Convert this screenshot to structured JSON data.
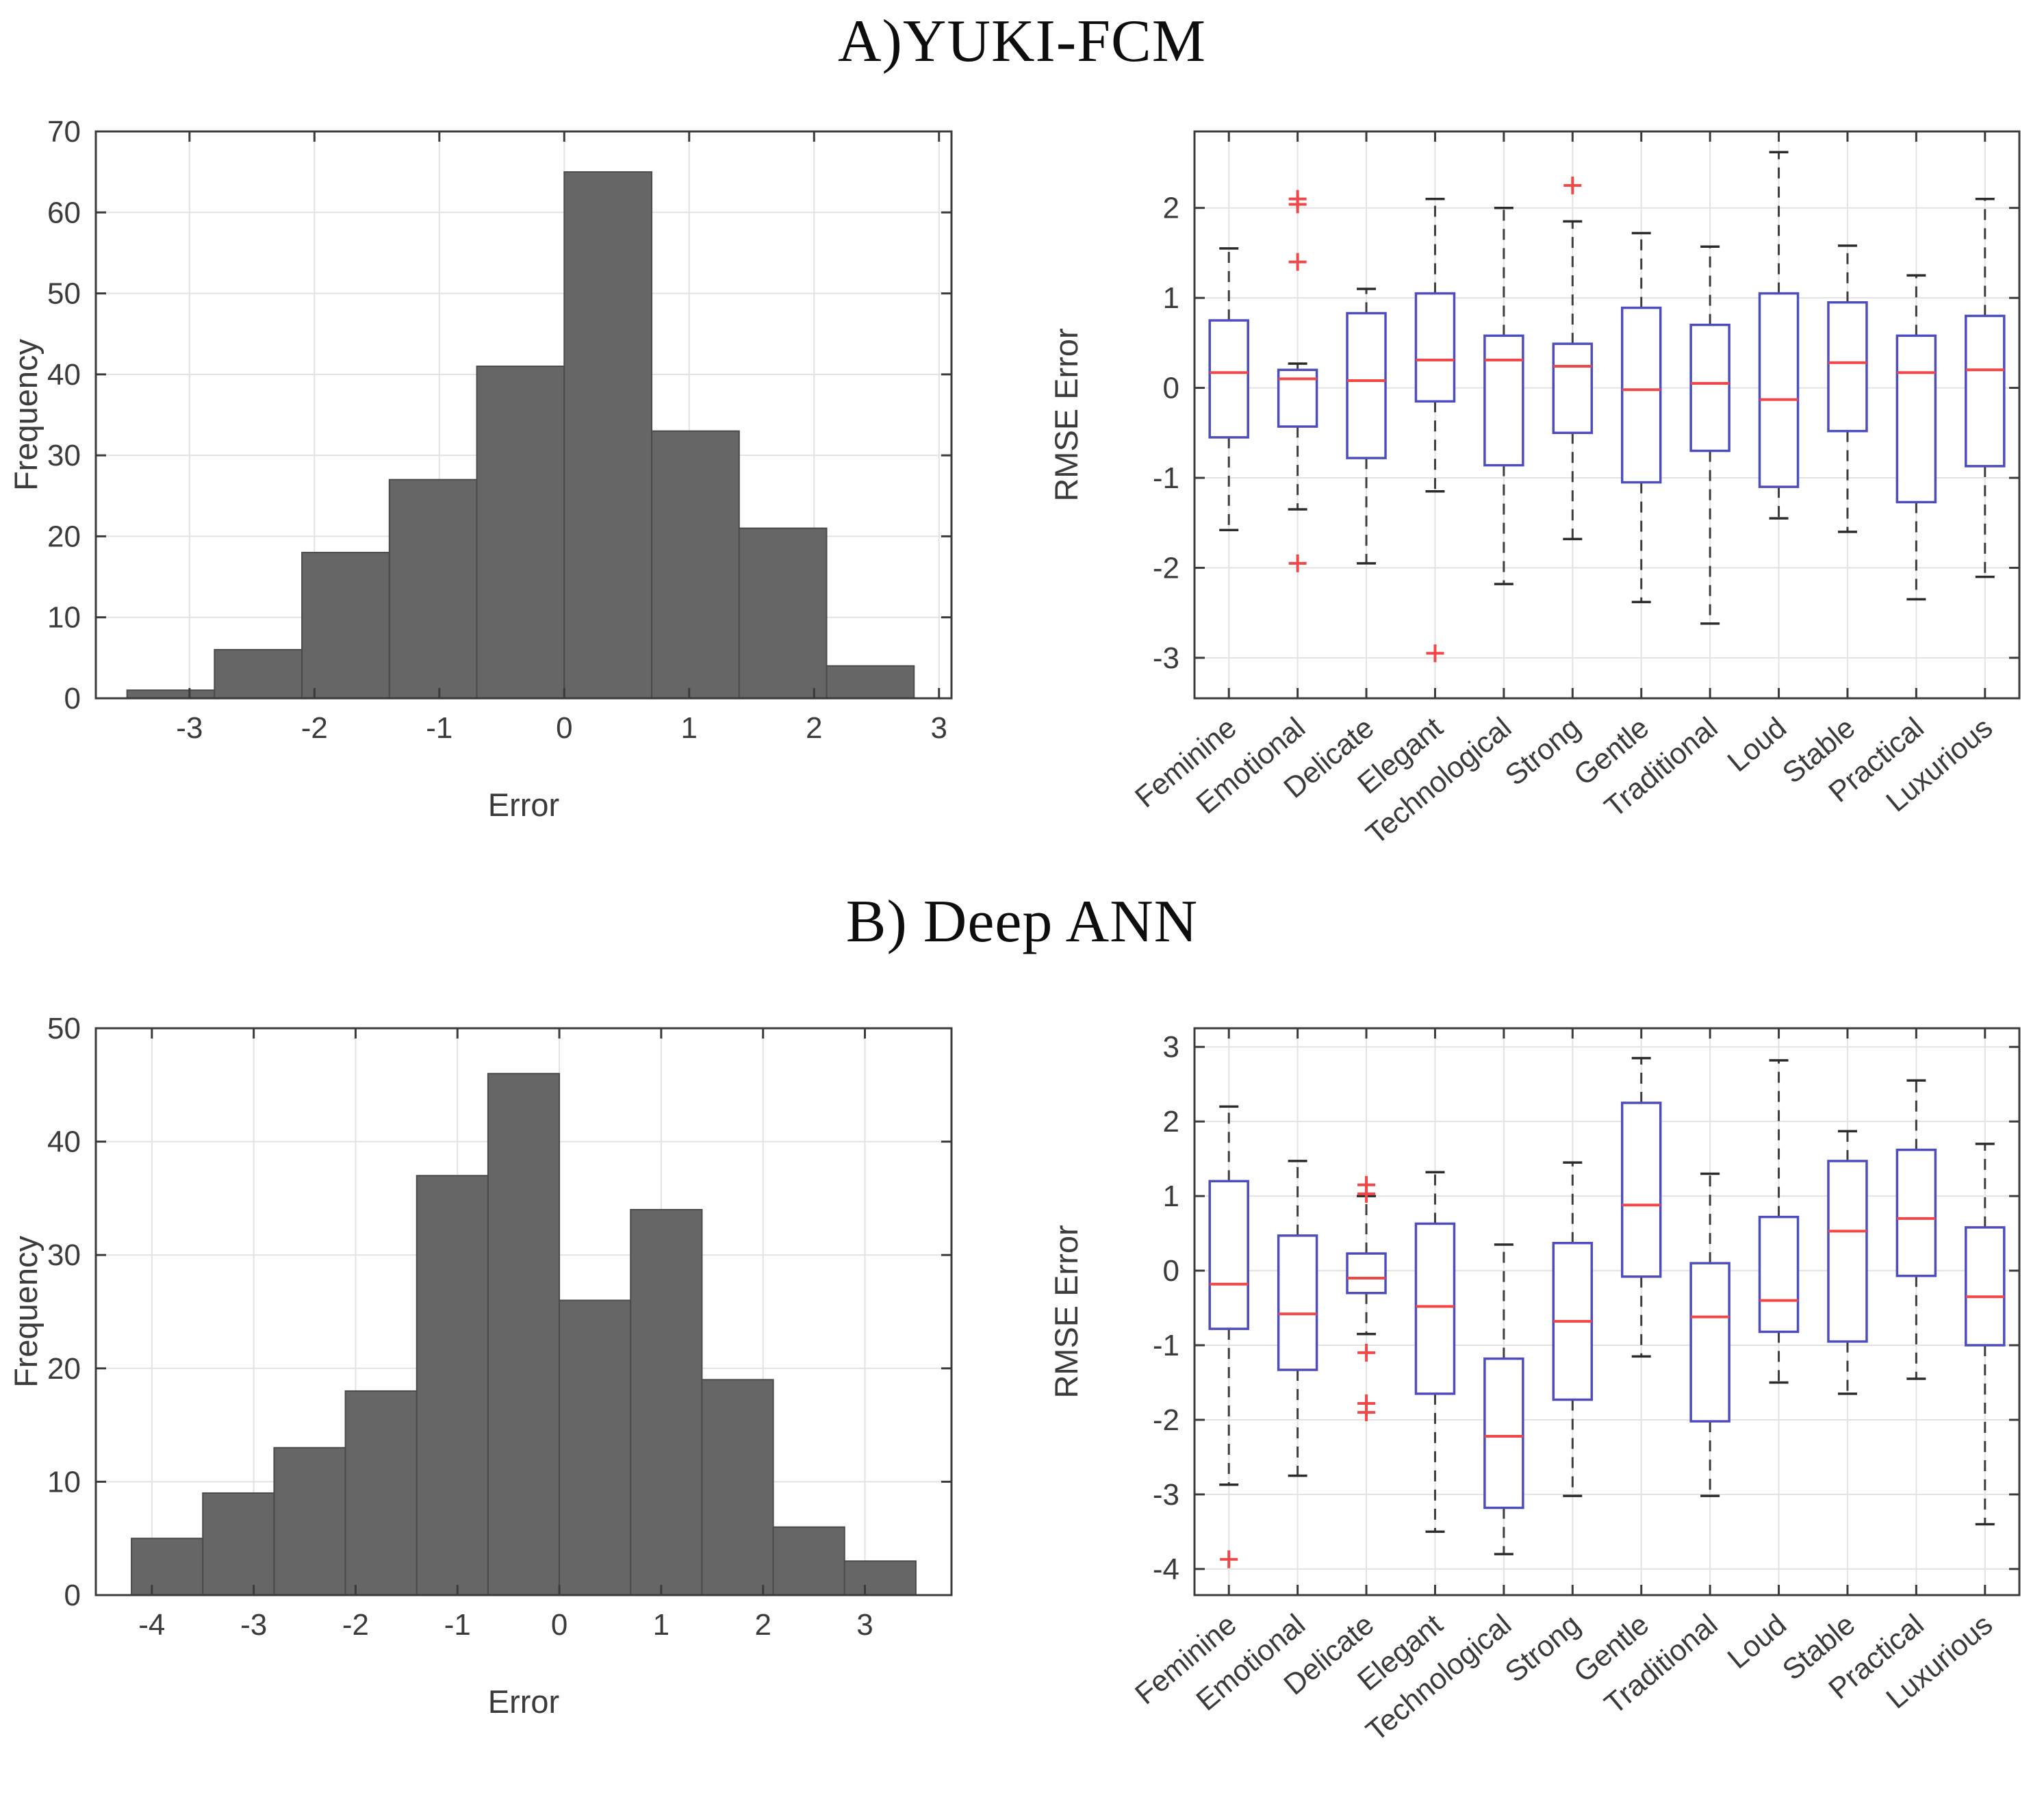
{
  "titles": {
    "a": "A)YUKI-FCM",
    "b": "B) Deep ANN"
  },
  "colors": {
    "bar_fill": "#666666",
    "bar_edge": "#4a4a4a",
    "box_edge": "#4d4dbe",
    "median": "#f04848",
    "whisker": "#3d3d3d",
    "outlier": "#f04848",
    "grid": "#e3e3e3",
    "axis": "#3b3b3b",
    "background": "#ffffff"
  },
  "chart_data": [
    {
      "id": "hist-yuki",
      "type": "bar",
      "variant": "histogram",
      "panel": "A",
      "title": "A)YUKI-FCM",
      "xlabel": "Error",
      "ylabel": "Frequency",
      "xlim": [
        -3.75,
        3.1
      ],
      "ylim": [
        0,
        70
      ],
      "xticks": [
        -3,
        -2,
        -1,
        0,
        1,
        2,
        3
      ],
      "yticks": [
        0,
        10,
        20,
        30,
        40,
        50,
        60,
        70
      ],
      "bin_start": -3.5,
      "bin_width": 0.7,
      "values": [
        1,
        6,
        18,
        27,
        41,
        65,
        33,
        21,
        4
      ],
      "grid": true,
      "legend": "none"
    },
    {
      "id": "box-yuki",
      "type": "boxplot",
      "panel": "A",
      "title": "A)YUKI-FCM",
      "ylabel": "RMSE Error",
      "ylim": [
        -3.45,
        2.85
      ],
      "yticks": [
        -3,
        -2,
        -1,
        0,
        1,
        2
      ],
      "grid": true,
      "boxes": [
        {
          "label": "Feminine",
          "whisker_low": -1.58,
          "q1": -0.55,
          "median": 0.17,
          "q3": 0.75,
          "whisker_high": 1.55,
          "outliers": []
        },
        {
          "label": "Emotional",
          "whisker_low": -1.35,
          "q1": -0.43,
          "median": 0.1,
          "q3": 0.2,
          "whisker_high": 0.27,
          "outliers": [
            2.1,
            2.04,
            1.4,
            -1.95
          ]
        },
        {
          "label": "Delicate",
          "whisker_low": -1.95,
          "q1": -0.78,
          "median": 0.08,
          "q3": 0.83,
          "whisker_high": 1.1,
          "outliers": []
        },
        {
          "label": "Elegant",
          "whisker_low": -1.15,
          "q1": -0.15,
          "median": 0.31,
          "q3": 1.05,
          "whisker_high": 2.1,
          "outliers": [
            -2.95
          ]
        },
        {
          "label": "Technological",
          "whisker_low": -2.18,
          "q1": -0.86,
          "median": 0.31,
          "q3": 0.58,
          "whisker_high": 2.0,
          "outliers": []
        },
        {
          "label": "Strong",
          "whisker_low": -1.68,
          "q1": -0.5,
          "median": 0.24,
          "q3": 0.49,
          "whisker_high": 1.85,
          "outliers": [
            2.25
          ]
        },
        {
          "label": "Gentle",
          "whisker_low": -2.38,
          "q1": -1.05,
          "median": -0.02,
          "q3": 0.89,
          "whisker_high": 1.72,
          "outliers": []
        },
        {
          "label": "Traditional",
          "whisker_low": -2.62,
          "q1": -0.7,
          "median": 0.05,
          "q3": 0.7,
          "whisker_high": 1.57,
          "outliers": []
        },
        {
          "label": "Loud",
          "whisker_low": -1.45,
          "q1": -1.1,
          "median": -0.13,
          "q3": 1.05,
          "whisker_high": 2.62,
          "outliers": []
        },
        {
          "label": "Stable",
          "whisker_low": -1.6,
          "q1": -0.48,
          "median": 0.28,
          "q3": 0.95,
          "whisker_high": 1.58,
          "outliers": []
        },
        {
          "label": "Practical",
          "whisker_low": -2.35,
          "q1": -1.27,
          "median": 0.17,
          "q3": 0.58,
          "whisker_high": 1.25,
          "outliers": []
        },
        {
          "label": "Luxurious",
          "whisker_low": -2.1,
          "q1": -0.87,
          "median": 0.2,
          "q3": 0.8,
          "whisker_high": 2.1,
          "outliers": []
        }
      ]
    },
    {
      "id": "hist-ann",
      "type": "bar",
      "variant": "histogram",
      "panel": "B",
      "title": "B) Deep ANN",
      "xlabel": "Error",
      "ylabel": "Frequency",
      "xlim": [
        -4.55,
        3.85
      ],
      "ylim": [
        0,
        50
      ],
      "xticks": [
        -4,
        -3,
        -2,
        -1,
        0,
        1,
        2,
        3
      ],
      "yticks": [
        0,
        10,
        20,
        30,
        40,
        50
      ],
      "bin_start": -4.2,
      "bin_width": 0.7,
      "values": [
        5,
        9,
        13,
        18,
        37,
        46,
        26,
        34,
        19,
        6,
        3
      ],
      "grid": true,
      "legend": "none"
    },
    {
      "id": "box-ann",
      "type": "boxplot",
      "panel": "B",
      "title": "B) Deep ANN",
      "ylabel": "RMSE Error",
      "ylim": [
        -4.35,
        3.25
      ],
      "yticks": [
        -4,
        -3,
        -2,
        -1,
        0,
        1,
        2,
        3
      ],
      "grid": true,
      "boxes": [
        {
          "label": "Feminine",
          "whisker_low": -2.87,
          "q1": -0.78,
          "median": -0.18,
          "q3": 1.2,
          "whisker_high": 2.2,
          "outliers": [
            -3.87
          ]
        },
        {
          "label": "Emotional",
          "whisker_low": -2.75,
          "q1": -1.33,
          "median": -0.58,
          "q3": 0.47,
          "whisker_high": 1.47,
          "outliers": []
        },
        {
          "label": "Delicate",
          "whisker_low": -0.85,
          "q1": -0.3,
          "median": -0.1,
          "q3": 0.23,
          "whisker_high": 1.0,
          "outliers": [
            1.15,
            1.03,
            -1.1,
            -1.78,
            -1.9
          ]
        },
        {
          "label": "Elegant",
          "whisker_low": -3.5,
          "q1": -1.65,
          "median": -0.48,
          "q3": 0.63,
          "whisker_high": 1.32,
          "outliers": []
        },
        {
          "label": "Technological",
          "whisker_low": -3.8,
          "q1": -3.18,
          "median": -2.22,
          "q3": -1.18,
          "whisker_high": 0.35,
          "outliers": []
        },
        {
          "label": "Strong",
          "whisker_low": -3.02,
          "q1": -1.73,
          "median": -0.68,
          "q3": 0.37,
          "whisker_high": 1.45,
          "outliers": []
        },
        {
          "label": "Gentle",
          "whisker_low": -1.15,
          "q1": -0.08,
          "median": 0.88,
          "q3": 2.25,
          "whisker_high": 2.85,
          "outliers": []
        },
        {
          "label": "Traditional",
          "whisker_low": -3.02,
          "q1": -2.02,
          "median": -0.62,
          "q3": 0.1,
          "whisker_high": 1.3,
          "outliers": []
        },
        {
          "label": "Loud",
          "whisker_low": -1.5,
          "q1": -0.82,
          "median": -0.4,
          "q3": 0.72,
          "whisker_high": 2.82,
          "outliers": []
        },
        {
          "label": "Stable",
          "whisker_low": -1.65,
          "q1": -0.95,
          "median": 0.53,
          "q3": 1.47,
          "whisker_high": 1.87,
          "outliers": []
        },
        {
          "label": "Practical",
          "whisker_low": -1.45,
          "q1": -0.07,
          "median": 0.7,
          "q3": 1.62,
          "whisker_high": 2.55,
          "outliers": []
        },
        {
          "label": "Luxurious",
          "whisker_low": -3.4,
          "q1": -1.0,
          "median": -0.35,
          "q3": 0.58,
          "whisker_high": 1.7,
          "outliers": []
        }
      ]
    }
  ]
}
